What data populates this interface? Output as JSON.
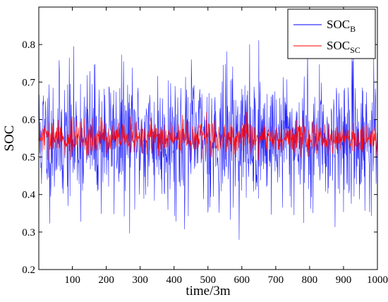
{
  "chart_data": {
    "type": "line",
    "xlabel": "time/3m",
    "ylabel": "SOC",
    "xlim": [
      1,
      1000
    ],
    "ylim": [
      0.2,
      0.9
    ],
    "xticks": [
      100,
      200,
      300,
      400,
      500,
      600,
      700,
      800,
      900,
      1000
    ],
    "yticks": [
      0.2,
      0.3,
      0.4,
      0.5,
      0.6,
      0.7,
      0.8
    ],
    "grid": false,
    "legend_position": "top-right",
    "series": [
      {
        "name": "SOC_B",
        "legend_main": "SOC",
        "legend_sub": "B",
        "color": "#0000ff",
        "mean": 0.55,
        "spread": 0.09,
        "min": 0.25,
        "max": 0.85,
        "seed": 11
      },
      {
        "name": "SOC_SC",
        "legend_main": "SOC",
        "legend_sub": "SC",
        "color": "#ff0000",
        "mean": 0.55,
        "spread": 0.022,
        "min": 0.49,
        "max": 0.62,
        "seed": 29
      }
    ]
  }
}
